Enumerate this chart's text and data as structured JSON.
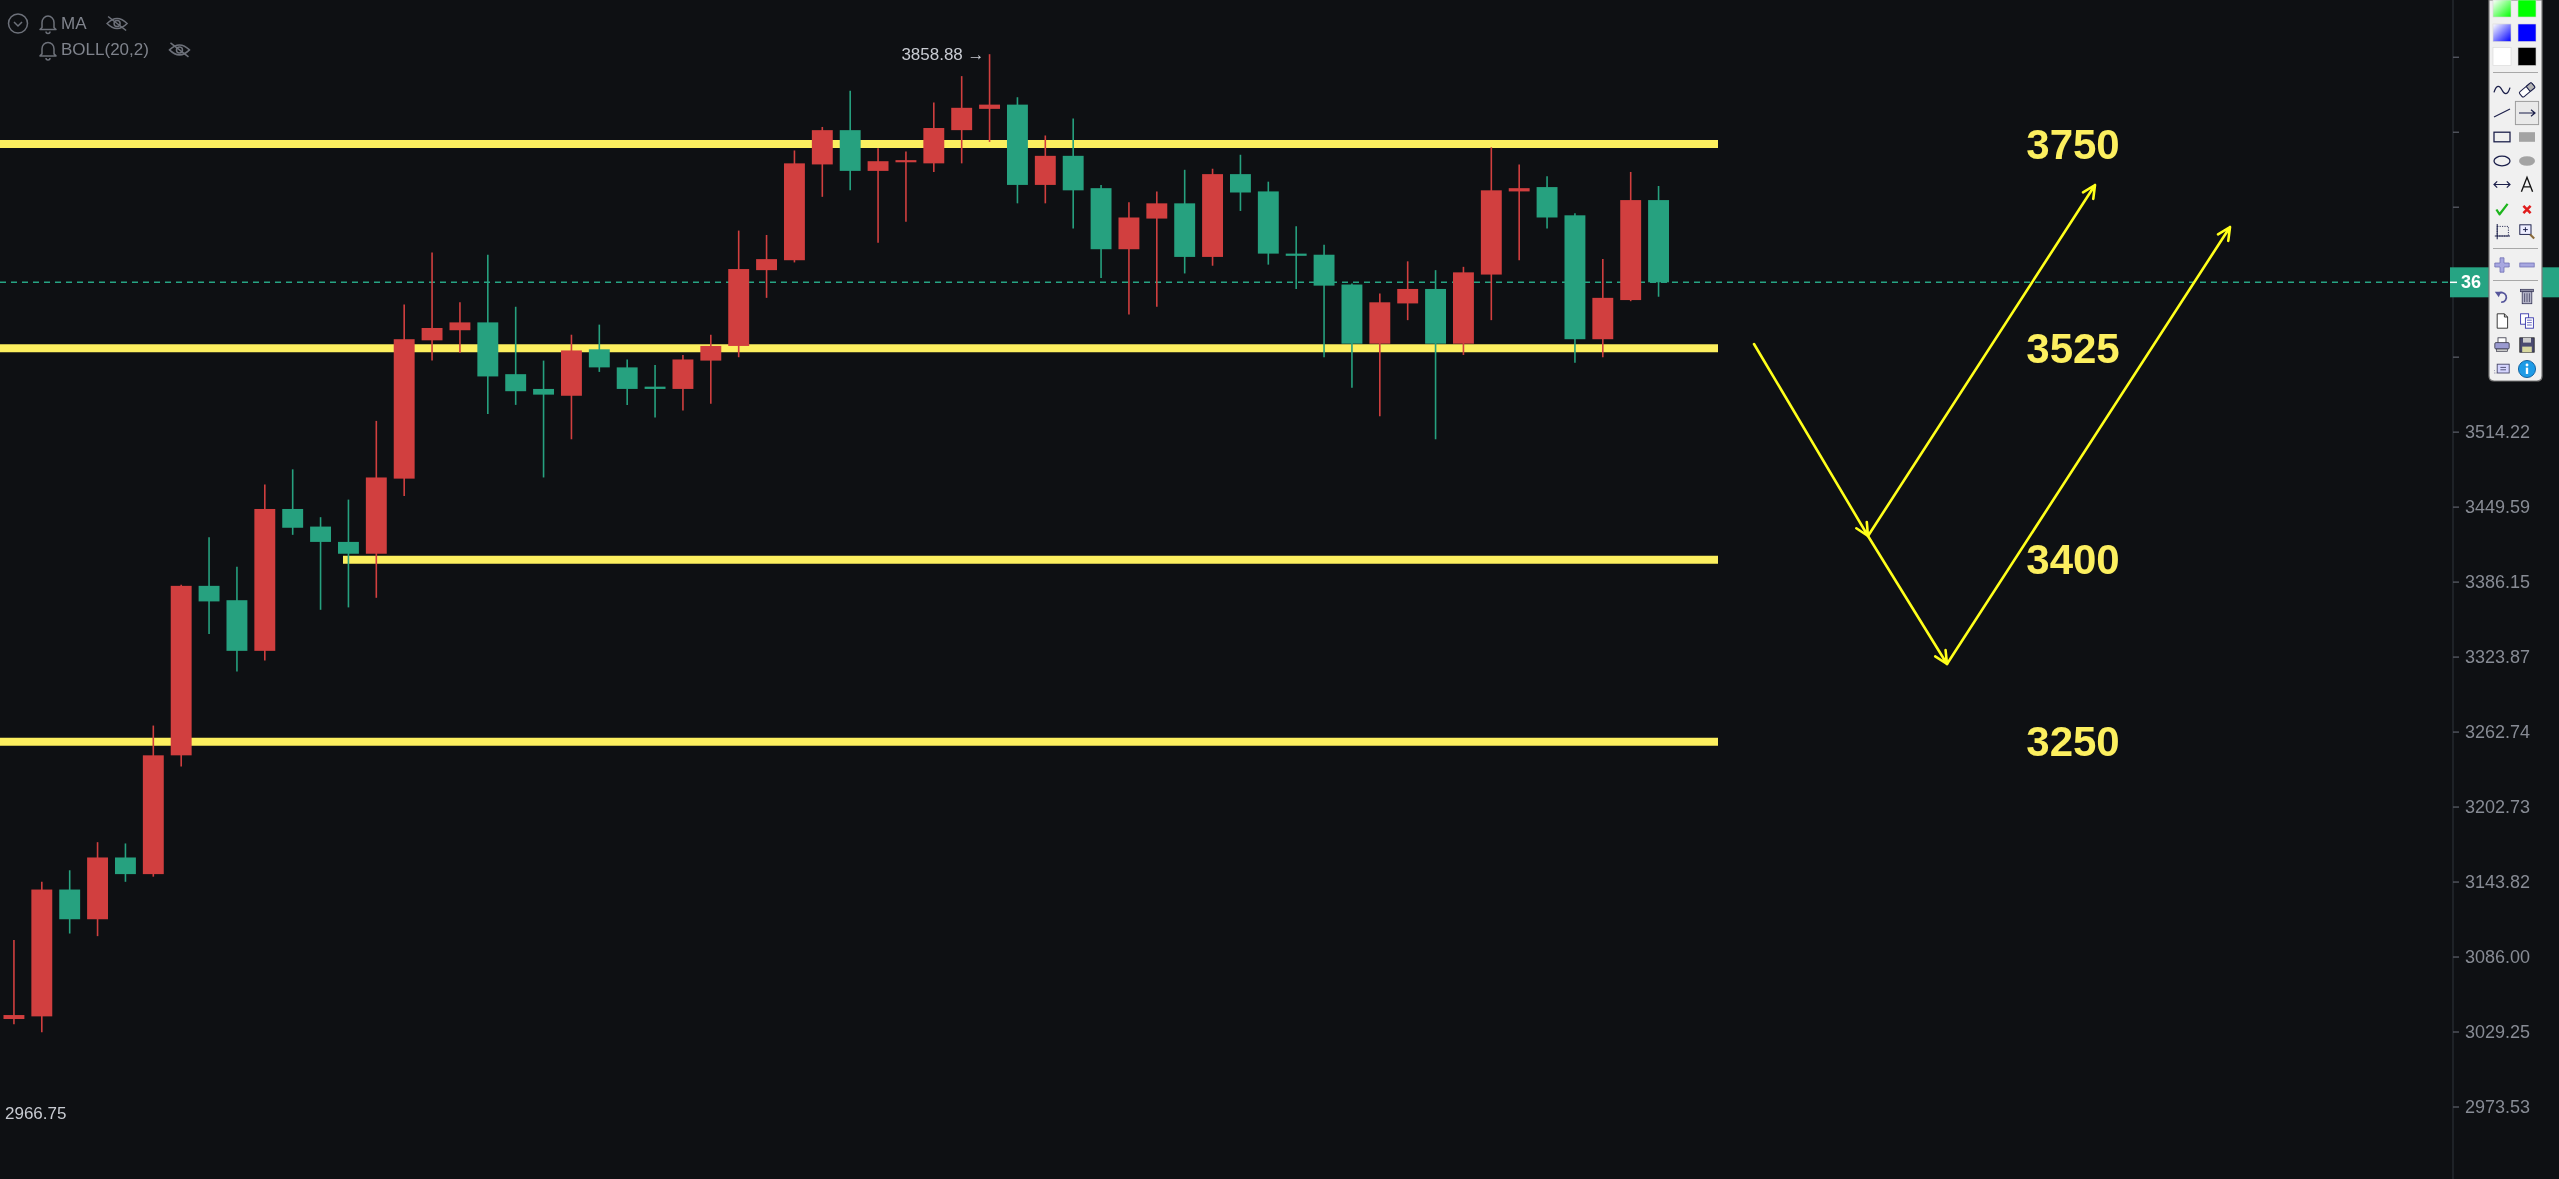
{
  "chart_data": {
    "type": "candlestick",
    "categories": [
      null,
      null,
      null,
      null,
      null,
      null,
      null,
      null,
      null,
      null,
      null,
      null,
      null,
      null,
      null,
      null,
      null,
      null,
      null,
      null,
      null,
      null,
      null,
      null,
      null,
      null,
      null,
      null,
      null,
      null,
      null,
      null,
      null,
      null,
      null,
      null,
      null,
      null,
      null,
      null,
      null,
      null,
      null,
      null,
      null,
      null,
      null,
      null,
      null,
      null,
      null,
      null,
      null,
      null,
      null,
      null,
      null,
      null,
      null,
      null,
      null,
      null,
      null,
      null,
      null,
      null,
      null,
      null,
      null,
      null,
      null,
      null,
      null,
      null,
      null,
      null,
      null,
      null,
      null,
      null,
      null,
      null,
      null,
      null,
      null,
      null,
      null,
      null
    ],
    "ohlc": [
      [
        3039,
        3099,
        3035,
        3042
      ],
      [
        3041,
        3144,
        3029,
        3138
      ],
      [
        3138,
        3153,
        3104,
        3115
      ],
      [
        3115,
        3175,
        3102,
        3163
      ],
      [
        3163,
        3174,
        3144,
        3150
      ],
      [
        3150,
        3268,
        3148,
        3244
      ],
      [
        3244,
        3384,
        3235,
        3383
      ],
      [
        3383,
        3424,
        3343,
        3370
      ],
      [
        3371,
        3399,
        3312,
        3329
      ],
      [
        3329,
        3469,
        3321,
        3448
      ],
      [
        3448,
        3482,
        3426,
        3432
      ],
      [
        3433,
        3441,
        3363,
        3420
      ],
      [
        3420,
        3456,
        3365,
        3410
      ],
      [
        3410,
        3524,
        3373,
        3475
      ],
      [
        3474,
        3627,
        3459,
        3596
      ],
      [
        3595,
        3674,
        3577,
        3606
      ],
      [
        3604,
        3629,
        3584,
        3611
      ],
      [
        3611,
        3672,
        3530,
        3563
      ],
      [
        3565,
        3625,
        3538,
        3550
      ],
      [
        3552,
        3577,
        3475,
        3547
      ],
      [
        3546,
        3600,
        3508,
        3586
      ],
      [
        3587,
        3609,
        3567,
        3571
      ],
      [
        3571,
        3578,
        3538,
        3552
      ],
      [
        3554,
        3573,
        3527,
        3552
      ],
      [
        3552,
        3582,
        3533,
        3578
      ],
      [
        3577,
        3600,
        3539,
        3590
      ],
      [
        3590,
        3694,
        3580,
        3659
      ],
      [
        3658,
        3690,
        3633,
        3668
      ],
      [
        3667,
        3768,
        3665,
        3756
      ],
      [
        3755,
        3790,
        3725,
        3787
      ],
      [
        3787,
        3824,
        3731,
        3749
      ],
      [
        3749,
        3770,
        3683,
        3758
      ],
      [
        3757,
        3767,
        3702,
        3759
      ],
      [
        3756,
        3813,
        3748,
        3789
      ],
      [
        3787,
        3838,
        3756,
        3808
      ],
      [
        3807,
        3858.88,
        3776,
        3811
      ],
      [
        3811,
        3818,
        3719,
        3736
      ],
      [
        3736,
        3782,
        3719,
        3763
      ],
      [
        3763,
        3798,
        3696,
        3731
      ],
      [
        3733,
        3736,
        3651,
        3677
      ],
      [
        3677,
        3720,
        3618,
        3706
      ],
      [
        3705,
        3730,
        3625,
        3719
      ],
      [
        3719,
        3750,
        3655,
        3670
      ],
      [
        3670,
        3751,
        3662,
        3746
      ],
      [
        3746,
        3764,
        3712,
        3729
      ],
      [
        3730,
        3739,
        3663,
        3673
      ],
      [
        3673,
        3698,
        3641,
        3671
      ],
      [
        3672,
        3681,
        3580,
        3644
      ],
      [
        3645,
        3646,
        3553,
        3592
      ],
      [
        3592,
        3637,
        3528,
        3629
      ],
      [
        3628,
        3666,
        3613,
        3641
      ],
      [
        3641,
        3658,
        3508,
        3592
      ],
      [
        3592,
        3661,
        3582,
        3656
      ],
      [
        3654,
        3771,
        3613,
        3731
      ],
      [
        3730,
        3755,
        3667,
        3733
      ],
      [
        3734,
        3744,
        3696,
        3706
      ],
      [
        3708,
        3710,
        3575,
        3596
      ],
      [
        3596,
        3668,
        3580,
        3633
      ],
      [
        3631,
        3748,
        3630,
        3722
      ],
      [
        3722,
        3735,
        3634,
        3647
      ],
      null,
      null,
      null,
      null,
      null,
      null,
      null,
      null,
      null,
      null,
      null,
      null,
      null,
      null,
      null,
      null,
      null,
      null,
      null,
      null,
      null,
      null,
      null,
      null,
      null,
      null,
      null,
      null
    ],
    "colors": [
      "#d13f3f",
      "#d13f3f",
      "#26a17f",
      "#d13f3f",
      "#26a17f",
      "#d13f3f",
      "#d13f3f",
      "#26a17f",
      "#26a17f",
      "#d13f3f",
      "#26a17f",
      "#26a17f",
      "#26a17f",
      "#d13f3f",
      "#d13f3f",
      "#d13f3f",
      "#d13f3f",
      "#26a17f",
      "#26a17f",
      "#26a17f",
      "#d13f3f",
      "#26a17f",
      "#26a17f",
      "#26a17f",
      "#d13f3f",
      "#d13f3f",
      "#d13f3f",
      "#d13f3f",
      "#d13f3f",
      "#d13f3f",
      "#26a17f",
      "#d13f3f",
      "#d13f3f",
      "#d13f3f",
      "#d13f3f",
      "#d13f3f",
      "#26a17f",
      "#d13f3f",
      "#26a17f",
      "#26a17f",
      "#d13f3f",
      "#d13f3f",
      "#26a17f",
      "#d13f3f",
      "#26a17f",
      "#26a17f",
      "#26a17f",
      "#26a17f",
      "#26a17f",
      "#d13f3f",
      "#d13f3f",
      "#26a17f",
      "#d13f3f",
      "#d13f3f",
      "#d13f3f",
      "#26a17f",
      "#26a17f",
      "#d13f3f",
      "#d13f3f",
      "#26a17f",
      null,
      null,
      null,
      null,
      null,
      null,
      null,
      null,
      null,
      null,
      null,
      null,
      null,
      null,
      null,
      null,
      null,
      null,
      null,
      null,
      null,
      null,
      null,
      null,
      null,
      null,
      null,
      null
    ],
    "log": true,
    "ylim": [
      2921,
      3911
    ],
    "yticks": [
      {
        "value": 3855.98,
        "label": null
      },
      {
        "value": 3785.07,
        "label": null
      },
      {
        "value": 3715.46,
        "label": null
      },
      {
        "value": 3580.06,
        "label": null
      },
      3514.22,
      3449.59,
      3386.15,
      3323.87,
      3262.74,
      3202.73,
      3143.82,
      {
        "value": 3086,
        "label": "3086.00"
      },
      3029.25,
      2973.53
    ],
    "tick_labels": "y",
    "ref_lines": [
      {
        "axis": "y",
        "value": 3774,
        "color": "#fcef5f"
      },
      {
        "axis": "y",
        "value": 3588,
        "color": "#fcef5f"
      },
      {
        "axis": "y",
        "value": 3405,
        "color": "#fcef5f"
      },
      {
        "axis": "y",
        "value": 3255,
        "color": "#fcef5f"
      },
      {
        "axis": "y",
        "value": 3647,
        "color": "#26a483",
        "line_style": "dashed"
      }
    ],
    "annotations": [
      "MA",
      "BOLL(20,2)",
      "3858.88 →",
      "2966.75",
      "3750",
      "3525",
      "3400",
      "3250",
      "36"
    ]
  }
}
